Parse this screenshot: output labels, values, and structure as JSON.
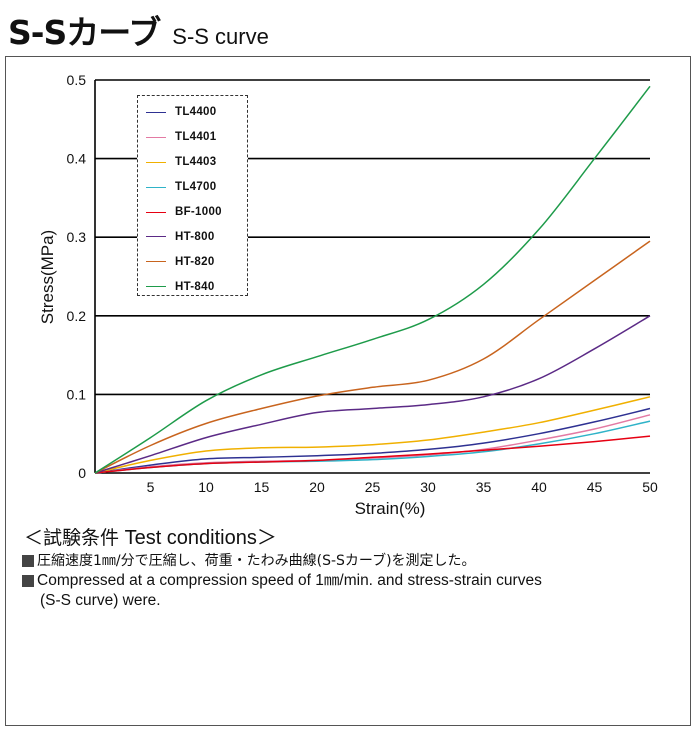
{
  "header": {
    "title_jp": "S-Sカーブ",
    "title_en": "S-S curve"
  },
  "chart_data": {
    "type": "line",
    "title": "",
    "xlabel": "Strain(%)",
    "ylabel": "Stress(MPa)",
    "xlim": [
      0,
      50
    ],
    "ylim": [
      0,
      0.5
    ],
    "x_ticks": [
      "5",
      "10",
      "15",
      "20",
      "25",
      "30",
      "35",
      "40",
      "45",
      "50"
    ],
    "y_ticks": [
      "0",
      "0.1",
      "0.2",
      "0.3",
      "0.4",
      "0.5"
    ],
    "grid": "horizontal",
    "legend_position": "top-left",
    "x": [
      0,
      5,
      10,
      15,
      20,
      25,
      30,
      35,
      40,
      45,
      50
    ],
    "series": [
      {
        "name": "TL4400",
        "color": "#2e3192",
        "values": [
          0,
          0.01,
          0.018,
          0.02,
          0.022,
          0.025,
          0.03,
          0.038,
          0.05,
          0.065,
          0.082
        ]
      },
      {
        "name": "TL4401",
        "color": "#e37aa3",
        "values": [
          0,
          0.008,
          0.013,
          0.015,
          0.016,
          0.019,
          0.023,
          0.03,
          0.042,
          0.056,
          0.074
        ]
      },
      {
        "name": "TL4403",
        "color": "#f0b000",
        "values": [
          0,
          0.016,
          0.028,
          0.032,
          0.033,
          0.036,
          0.042,
          0.052,
          0.064,
          0.08,
          0.097
        ]
      },
      {
        "name": "TL4700",
        "color": "#2fb3c8",
        "values": [
          0,
          0.007,
          0.012,
          0.014,
          0.015,
          0.017,
          0.021,
          0.027,
          0.037,
          0.05,
          0.066
        ]
      },
      {
        "name": "BF-1000",
        "color": "#e60012",
        "values": [
          0,
          0.007,
          0.012,
          0.014,
          0.016,
          0.02,
          0.024,
          0.029,
          0.034,
          0.04,
          0.047
        ]
      },
      {
        "name": "HT-800",
        "color": "#5b2a86",
        "values": [
          0,
          0.022,
          0.045,
          0.062,
          0.077,
          0.082,
          0.087,
          0.097,
          0.12,
          0.158,
          0.2
        ]
      },
      {
        "name": "HT-820",
        "color": "#c8641e",
        "values": [
          0,
          0.035,
          0.063,
          0.082,
          0.098,
          0.109,
          0.118,
          0.145,
          0.195,
          0.245,
          0.295
        ]
      },
      {
        "name": "HT-840",
        "color": "#1e9b4a",
        "values": [
          0,
          0.045,
          0.092,
          0.125,
          0.148,
          0.17,
          0.195,
          0.24,
          0.31,
          0.4,
          0.492
        ]
      }
    ]
  },
  "conditions": {
    "heading_jp": "＜試験条件",
    "heading_en": " Test conditions＞",
    "line1_jp": "圧縮速度1㎜/分で圧縮し、荷重・たわみ曲線(S-Sカーブ)を測定した。",
    "line2_en": "Compressed at a compression speed of 1㎜/min. and stress-strain curves",
    "line3_en": "(S-S curve) were."
  },
  "colors": {
    "grid": "#000000",
    "frame": "#555555",
    "bullet": "#444444"
  }
}
